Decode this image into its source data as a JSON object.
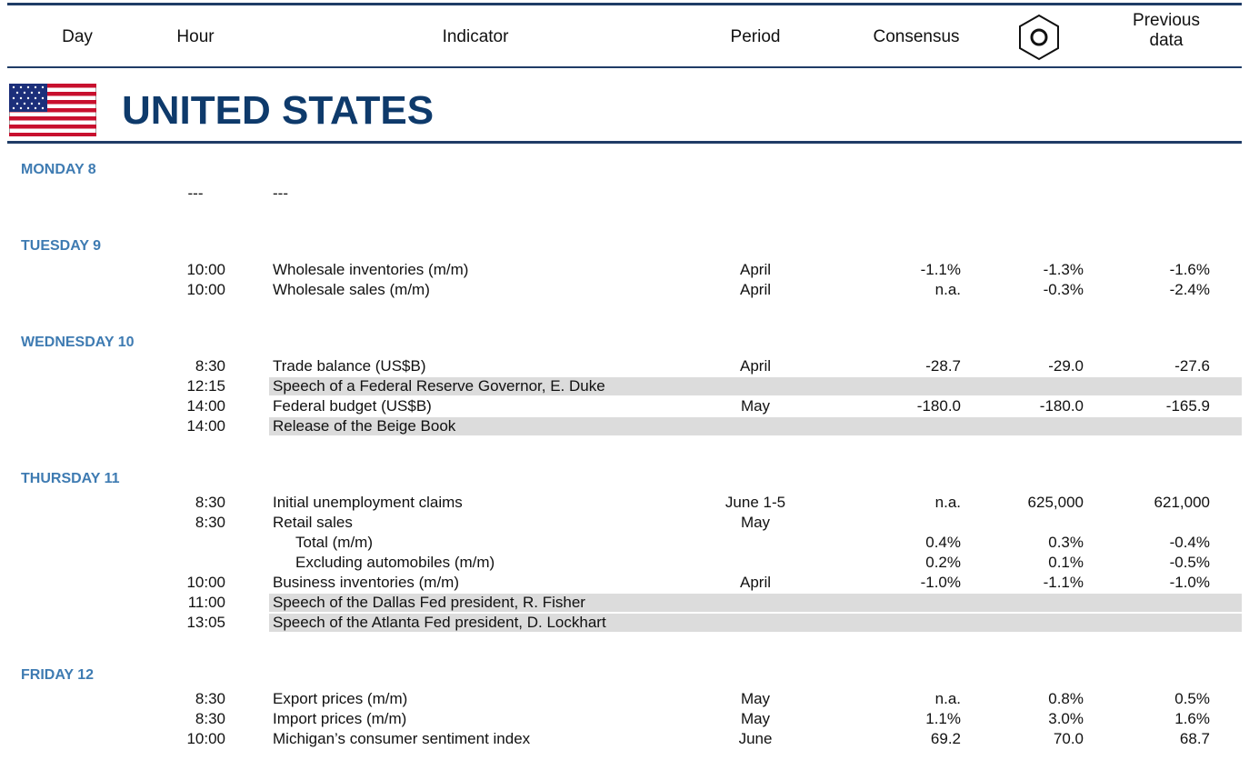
{
  "header": {
    "day": "Day",
    "hour": "Hour",
    "indicator": "Indicator",
    "period": "Period",
    "consensus": "Consensus",
    "previous_data": "Previous data"
  },
  "country": "UNITED STATES",
  "days": [
    {
      "label": "MONDAY 8",
      "events": [
        {
          "hour": "---",
          "indicator": "---"
        }
      ]
    },
    {
      "label": "TUESDAY 9",
      "events": [
        {
          "hour": "10:00",
          "indicator": "Wholesale inventories (m/m)",
          "period": "April",
          "consensus": "-1.1%",
          "forecast": "-1.3%",
          "previous": "-1.6%"
        },
        {
          "hour": "10:00",
          "indicator": "Wholesale sales (m/m)",
          "period": "April",
          "consensus": "n.a.",
          "forecast": "-0.3%",
          "previous": "-2.4%"
        }
      ]
    },
    {
      "label": "WEDNESDAY 10",
      "events": [
        {
          "hour": "8:30",
          "indicator": "Trade balance (US$B)",
          "period": "April",
          "consensus": "-28.7",
          "forecast": "-29.0",
          "previous": "-27.6"
        },
        {
          "hour": "12:15",
          "indicator": "Speech of a Federal Reserve Governor, E. Duke",
          "highlight": true
        },
        {
          "hour": "14:00",
          "indicator": "Federal budget (US$B)",
          "period": "May",
          "consensus": "-180.0",
          "forecast": "-180.0",
          "previous": "-165.9"
        },
        {
          "hour": "14:00",
          "indicator": "Release of the Beige Book",
          "highlight": true
        }
      ]
    },
    {
      "label": "THURSDAY 11",
      "events": [
        {
          "hour": "8:30",
          "indicator": "Initial unemployment claims",
          "period": "June 1-5",
          "consensus": "n.a.",
          "forecast": "625,000",
          "previous": "621,000"
        },
        {
          "hour": "8:30",
          "indicator": "Retail sales",
          "period": "May"
        },
        {
          "indicator": "Total (m/m)",
          "indent": true,
          "consensus": "0.4%",
          "forecast": "0.3%",
          "previous": "-0.4%"
        },
        {
          "indicator": "Excluding automobiles (m/m)",
          "indent": true,
          "consensus": "0.2%",
          "forecast": "0.1%",
          "previous": "-0.5%"
        },
        {
          "hour": "10:00",
          "indicator": "Business inventories (m/m)",
          "period": "April",
          "consensus": "-1.0%",
          "forecast": "-1.1%",
          "previous": "-1.0%"
        },
        {
          "hour": "11:00",
          "indicator": "Speech of the Dallas Fed president, R. Fisher",
          "highlight": true
        },
        {
          "hour": "13:05",
          "indicator": "Speech of the Atlanta Fed president, D. Lockhart",
          "highlight": true
        }
      ]
    },
    {
      "label": "FRIDAY 12",
      "events": [
        {
          "hour": "8:30",
          "indicator": "Export prices (m/m)",
          "period": "May",
          "consensus": "n.a.",
          "forecast": "0.8%",
          "previous": "0.5%"
        },
        {
          "hour": "8:30",
          "indicator": "Import prices (m/m)",
          "period": "May",
          "consensus": "1.1%",
          "forecast": "3.0%",
          "previous": "1.6%"
        },
        {
          "hour": "10:00",
          "indicator": "Michigan’s consumer sentiment index",
          "period": "June",
          "consensus": "69.2",
          "forecast": "70.0",
          "previous": "68.7"
        }
      ]
    }
  ]
}
